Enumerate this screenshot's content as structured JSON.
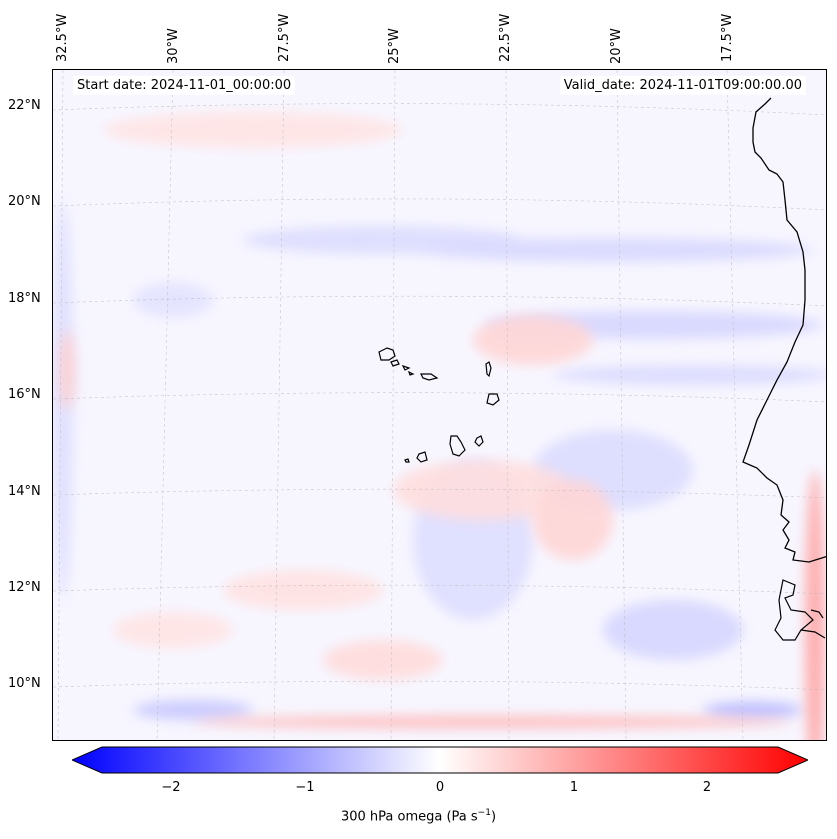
{
  "map": {
    "start_date": "Start date: 2024-11-01_00:00:00",
    "valid_date": "Valid_date: 2024-11-01T09:00:00.00",
    "lon_labels": [
      "32.5°W",
      "30°W",
      "27.5°W",
      "25°W",
      "22.5°W",
      "20°W",
      "17.5°W"
    ],
    "lat_labels": [
      "22°N",
      "20°N",
      "18°N",
      "16°N",
      "14°N",
      "12°N",
      "10°N"
    ]
  },
  "colorbar": {
    "label": "300 hPa omega (Pa s",
    "label_exp": "−1",
    "label_end": ")",
    "ticks": [
      "−2",
      "−1",
      "0",
      "1",
      "2"
    ],
    "min": -2.75,
    "max": 2.75,
    "colors": {
      "negative": "#0000ff",
      "zero": "#ffffff",
      "positive": "#ff0000"
    }
  }
}
